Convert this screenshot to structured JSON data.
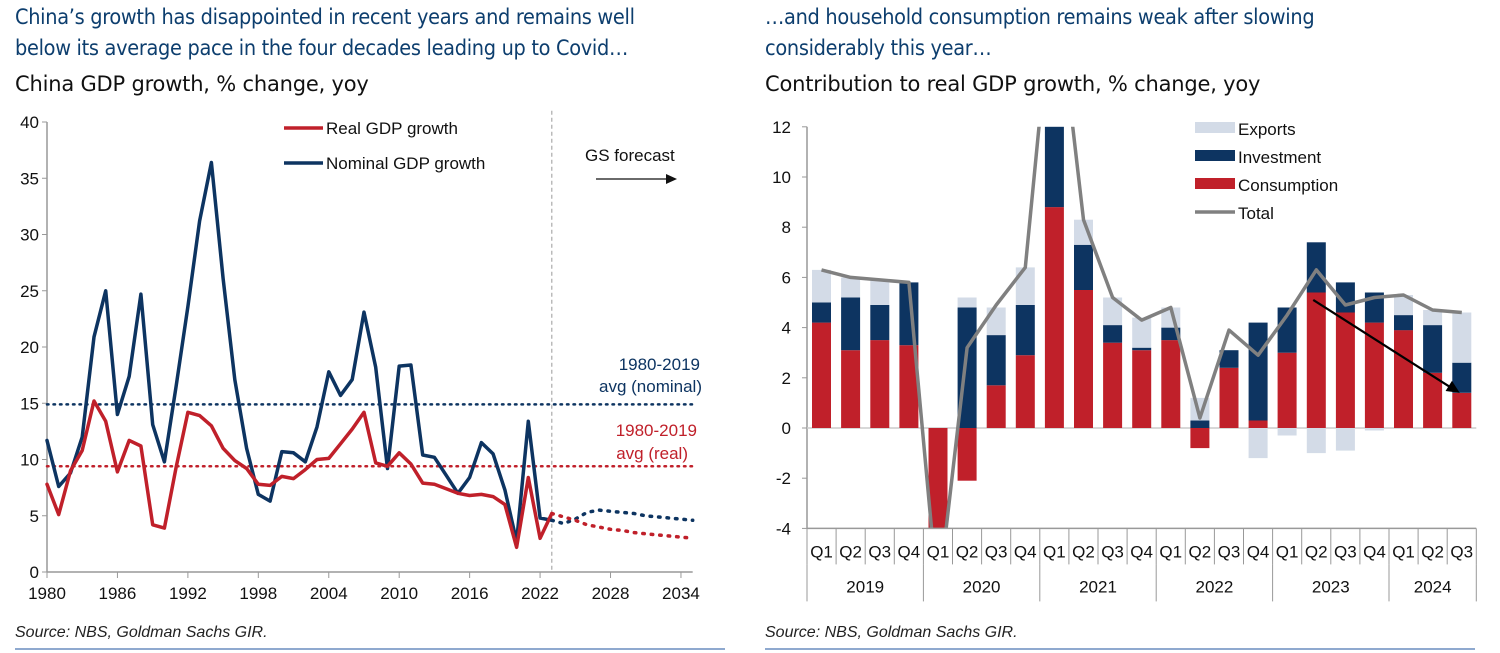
{
  "left": {
    "headline_line1": "China’s growth has disappointed in recent years and remains well",
    "headline_line2": "below its average pace in the four decades leading up to Covid…",
    "subtitle": "China GDP growth, % change, yoy",
    "source": "Source: NBS, Goldman Sachs GIR.",
    "annotations": {
      "forecast": "GS forecast",
      "nominal_avg_line1": "1980-2019",
      "nominal_avg_line2": "avg (nominal)",
      "real_avg_line1": "1980-2019",
      "real_avg_line2": "avg (real)"
    }
  },
  "right": {
    "headline_line1": "…and household consumption remains weak after slowing",
    "headline_line2": "considerably this year…",
    "subtitle": "Contribution to real GDP growth, % change, yoy",
    "source": "Source: NBS, Goldman Sachs GIR."
  },
  "colors": {
    "real": "#c0202a",
    "nominal": "#0d3461",
    "exports": "#d3dbe7",
    "investment": "#0d3461",
    "consumption": "#c0202a",
    "total": "#808080",
    "headline": "#0d3e6e"
  },
  "chart_data": [
    {
      "type": "line",
      "title": "China GDP growth, % change, yoy",
      "xlabel": "",
      "ylabel": "",
      "xlim": [
        1980,
        2035
      ],
      "ylim": [
        0,
        40
      ],
      "x_ticks": [
        1980,
        1986,
        1992,
        1998,
        2004,
        2010,
        2016,
        2022,
        2028,
        2034
      ],
      "y_ticks": [
        0,
        5,
        10,
        15,
        20,
        25,
        30,
        35,
        40
      ],
      "legend": [
        "Real GDP growth",
        "Nominal GDP growth"
      ],
      "legend_position": "top-center",
      "forecast_start": 2023,
      "series": [
        {
          "name": "Real GDP growth",
          "x": [
            1980,
            1981,
            1982,
            1983,
            1984,
            1985,
            1986,
            1987,
            1988,
            1989,
            1990,
            1991,
            1992,
            1993,
            1994,
            1995,
            1996,
            1997,
            1998,
            1999,
            2000,
            2001,
            2002,
            2003,
            2004,
            2005,
            2006,
            2007,
            2008,
            2009,
            2010,
            2011,
            2012,
            2013,
            2014,
            2015,
            2016,
            2017,
            2018,
            2019,
            2020,
            2021,
            2022,
            2023
          ],
          "values": [
            7.8,
            5.1,
            9.0,
            10.8,
            15.2,
            13.4,
            8.9,
            11.7,
            11.2,
            4.2,
            3.9,
            9.3,
            14.2,
            13.9,
            13.0,
            11.0,
            9.9,
            9.2,
            7.8,
            7.7,
            8.5,
            8.3,
            9.1,
            10.0,
            10.1,
            11.4,
            12.7,
            14.2,
            9.7,
            9.4,
            10.6,
            9.6,
            7.9,
            7.8,
            7.4,
            7.0,
            6.8,
            6.9,
            6.7,
            6.0,
            2.2,
            8.4,
            3.0,
            5.2
          ]
        },
        {
          "name": "Nominal GDP growth",
          "x": [
            1980,
            1981,
            1982,
            1983,
            1984,
            1985,
            1986,
            1987,
            1988,
            1989,
            1990,
            1991,
            1992,
            1993,
            1994,
            1995,
            1996,
            1997,
            1998,
            1999,
            2000,
            2001,
            2002,
            2003,
            2004,
            2005,
            2006,
            2007,
            2008,
            2009,
            2010,
            2011,
            2012,
            2013,
            2014,
            2015,
            2016,
            2017,
            2018,
            2019,
            2020,
            2021,
            2022,
            2023
          ],
          "values": [
            11.7,
            7.6,
            8.8,
            12.0,
            20.9,
            25.0,
            14.0,
            17.4,
            24.7,
            13.1,
            9.8,
            16.5,
            23.6,
            31.2,
            36.4,
            26.1,
            17.1,
            11.0,
            6.9,
            6.3,
            10.7,
            10.6,
            9.8,
            12.9,
            17.8,
            15.7,
            17.1,
            23.1,
            18.2,
            9.2,
            18.3,
            18.4,
            10.4,
            10.2,
            8.6,
            7.0,
            8.4,
            11.5,
            10.5,
            7.3,
            2.7,
            13.4,
            4.8,
            4.6
          ]
        },
        {
          "name": "Real GDP growth forecast",
          "x": [
            2023,
            2024,
            2025,
            2026,
            2027,
            2028,
            2029,
            2030,
            2031,
            2032,
            2033,
            2034,
            2035
          ],
          "values": [
            5.2,
            4.9,
            4.6,
            4.2,
            4.0,
            3.8,
            3.7,
            3.5,
            3.4,
            3.3,
            3.2,
            3.1,
            3.0
          ]
        },
        {
          "name": "Nominal GDP growth forecast",
          "x": [
            2023,
            2024,
            2025,
            2026,
            2027,
            2028,
            2029,
            2030,
            2031,
            2032,
            2033,
            2034,
            2035
          ],
          "values": [
            4.6,
            4.3,
            4.7,
            5.3,
            5.5,
            5.4,
            5.3,
            5.2,
            5.0,
            4.9,
            4.8,
            4.7,
            4.6
          ]
        }
      ],
      "reference_lines": [
        {
          "name": "1980-2019 avg (nominal)",
          "value": 14.9
        },
        {
          "name": "1980-2019 avg (real)",
          "value": 9.4
        }
      ]
    },
    {
      "type": "bar",
      "stacked": true,
      "title": "Contribution to real GDP growth, % change, yoy",
      "xlabel": "",
      "ylabel": "",
      "ylim": [
        -4,
        12
      ],
      "y_ticks": [
        -4,
        -2,
        0,
        2,
        4,
        6,
        8,
        10,
        12
      ],
      "legend": [
        "Exports",
        "Investment",
        "Consumption",
        "Total"
      ],
      "legend_position": "top-right",
      "categories": [
        "Q1",
        "Q2",
        "Q3",
        "Q4",
        "Q1",
        "Q2",
        "Q3",
        "Q4",
        "Q1",
        "Q2",
        "Q3",
        "Q4",
        "Q1",
        "Q2",
        "Q3",
        "Q4",
        "Q1",
        "Q2",
        "Q3",
        "Q4",
        "Q1",
        "Q2",
        "Q3"
      ],
      "years": [
        {
          "label": "2019",
          "quarters": 4
        },
        {
          "label": "2020",
          "quarters": 4
        },
        {
          "label": "2021",
          "quarters": 4
        },
        {
          "label": "2022",
          "quarters": 4
        },
        {
          "label": "2023",
          "quarters": 4
        },
        {
          "label": "2024",
          "quarters": 3
        }
      ],
      "series": [
        {
          "name": "Consumption",
          "values": [
            4.2,
            3.1,
            3.5,
            3.3,
            -4.4,
            -2.1,
            1.7,
            2.9,
            8.8,
            5.5,
            3.4,
            3.1,
            3.5,
            -0.8,
            2.4,
            0.3,
            3.0,
            5.4,
            4.6,
            4.2,
            3.9,
            2.2,
            1.4
          ]
        },
        {
          "name": "Investment",
          "values": [
            0.8,
            2.1,
            1.4,
            2.5,
            -1.4,
            4.8,
            2.0,
            2.0,
            8.4,
            1.8,
            0.7,
            0.1,
            0.5,
            0.3,
            0.7,
            3.9,
            1.8,
            2.0,
            1.2,
            1.2,
            0.6,
            1.9,
            1.2
          ]
        },
        {
          "name": "Exports",
          "values": [
            1.3,
            0.8,
            1.0,
            0.0,
            -0.9,
            0.4,
            1.1,
            1.5,
            1.2,
            1.0,
            1.1,
            1.2,
            0.8,
            0.9,
            0.0,
            -1.2,
            -0.3,
            -1.0,
            -0.9,
            -0.1,
            0.8,
            0.6,
            2.0
          ]
        },
        {
          "name": "Total",
          "values": [
            6.3,
            6.0,
            5.9,
            5.8,
            -6.8,
            3.2,
            4.9,
            6.4,
            18.3,
            8.3,
            5.2,
            4.3,
            4.8,
            0.4,
            3.9,
            2.9,
            4.5,
            6.3,
            4.9,
            5.2,
            5.3,
            4.7,
            4.6
          ]
        }
      ],
      "annotations": [
        "Arrow from 2023 Q2 to 2024 Q3 highlighting slowing consumption"
      ]
    }
  ]
}
